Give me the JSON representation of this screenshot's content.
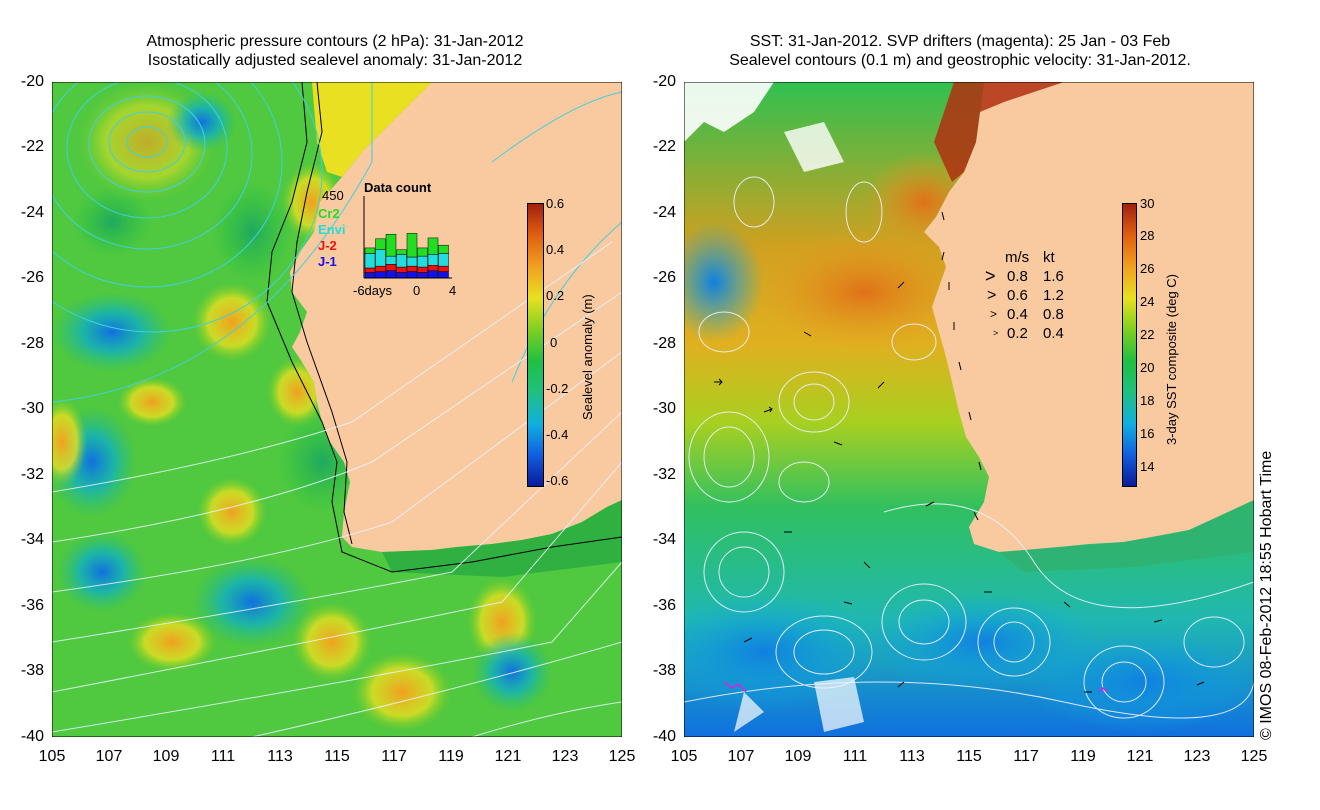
{
  "left_panel": {
    "title_line1": "Atmospheric pressure contours (2 hPa): 31-Jan-2012",
    "title_line2": "Isostatically adjusted sealevel anomaly: 31-Jan-2012",
    "colorbar_label": "Sealevel anomaly (m)",
    "colorbar_ticks": [
      "0.6",
      "0.4",
      "0.2",
      "0",
      "-0.2",
      "-0.4",
      "-0.6"
    ],
    "data_count": {
      "title": "Data count",
      "max_label": "450",
      "x_labels": [
        "-6days",
        "0",
        "4"
      ],
      "legend": [
        {
          "label": "Cr2",
          "color": "#22dd22"
        },
        {
          "label": "Envi",
          "color": "#22dddd"
        },
        {
          "label": "J-2",
          "color": "#ee1111"
        },
        {
          "label": "J-1",
          "color": "#1111ee"
        }
      ],
      "bars": [
        {
          "j1": 30,
          "j2": 25,
          "envi": 80,
          "cr2": 30
        },
        {
          "j1": 35,
          "j2": 30,
          "envi": 90,
          "cr2": 60
        },
        {
          "j1": 40,
          "j2": 35,
          "envi": 45,
          "cr2": 120
        },
        {
          "j1": 30,
          "j2": 30,
          "envi": 70,
          "cr2": 25
        },
        {
          "j1": 35,
          "j2": 30,
          "envi": 50,
          "cr2": 130
        },
        {
          "j1": 30,
          "j2": 30,
          "envi": 60,
          "cr2": 45
        },
        {
          "j1": 40,
          "j2": 30,
          "envi": 60,
          "cr2": 90
        },
        {
          "j1": 35,
          "j2": 30,
          "envi": 70,
          "cr2": 45
        }
      ]
    }
  },
  "right_panel": {
    "title_line1": "SST: 31-Jan-2012. SVP drifters (magenta): 25 Jan - 03 Feb",
    "title_line2": "Sealevel contours (0.1 m) and geostrophic velocity: 31-Jan-2012.",
    "colorbar_label": "3-day SST composite (deg C)",
    "colorbar_ticks": [
      "30",
      "28",
      "26",
      "24",
      "22",
      "20",
      "18",
      "16",
      "14"
    ],
    "velocity_legend": {
      "header_ms": "m/s",
      "header_kt": "kt",
      "rows": [
        {
          "ms": "0.8",
          "kt": "1.6"
        },
        {
          "ms": "0.6",
          "kt": "1.2"
        },
        {
          "ms": "0.4",
          "kt": "0.8"
        },
        {
          "ms": "0.2",
          "kt": "0.4"
        }
      ]
    }
  },
  "axes": {
    "y_ticks": [
      "-20",
      "-22",
      "-24",
      "-26",
      "-28",
      "-30",
      "-32",
      "-34",
      "-36",
      "-38",
      "-40"
    ],
    "x_ticks": [
      "105",
      "107",
      "109",
      "111",
      "113",
      "115",
      "117",
      "119",
      "121",
      "123",
      "125"
    ]
  },
  "credit": "© IMOS 08-Feb-2012 18:55 Hobart Time",
  "colors": {
    "land": "#f9c9a0",
    "sla_ramp": [
      "#0a1a9a",
      "#1060e0",
      "#10b0e0",
      "#20c080",
      "#20c040",
      "#80d020",
      "#e8e020",
      "#f0a020",
      "#e06010",
      "#a02010"
    ],
    "sst_ramp": [
      "#0a1a9a",
      "#1060e0",
      "#10b0e0",
      "#20c080",
      "#20c040",
      "#80d020",
      "#e8e020",
      "#f0a020",
      "#e06010",
      "#a02010"
    ]
  }
}
